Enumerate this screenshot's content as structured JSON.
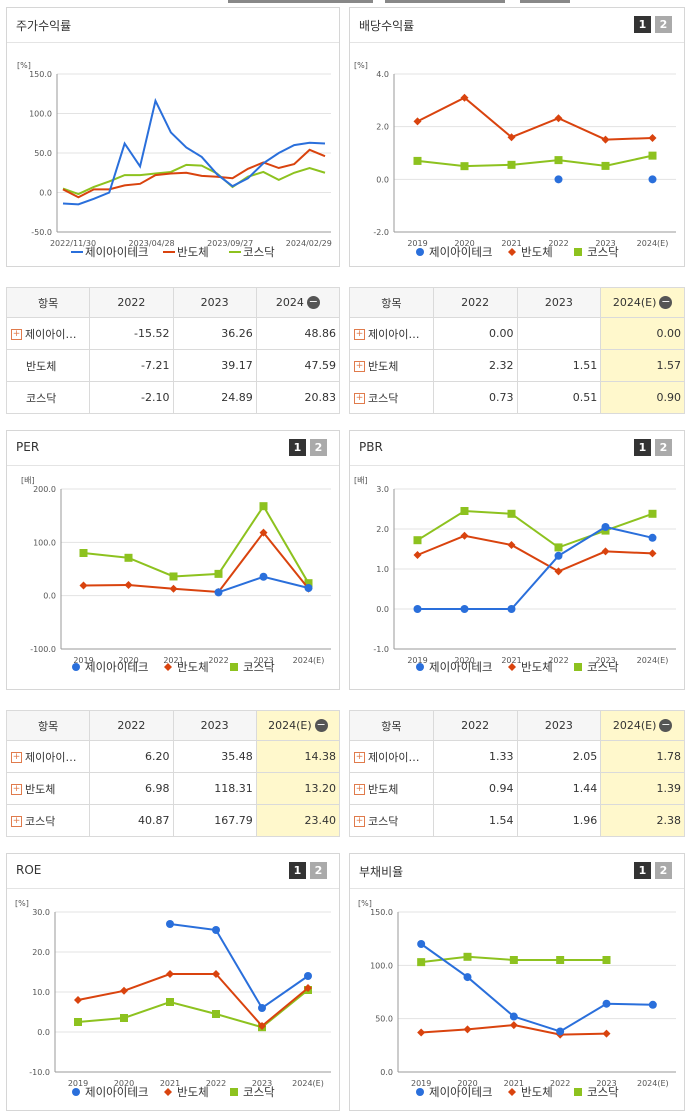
{
  "series_names": [
    "제이아이테크",
    "반도체",
    "코스닥"
  ],
  "colors": {
    "s1": "#2a6fdb",
    "s2": "#d9430e",
    "s3": "#8dc21f"
  },
  "panels": {
    "stock": {
      "title": "주가수익률"
    },
    "dividend": {
      "title": "배당수익률",
      "btn1": "1",
      "btn2": "2"
    },
    "per": {
      "title": "PER",
      "btn1": "1",
      "btn2": "2"
    },
    "pbr": {
      "title": "PBR",
      "btn1": "1",
      "btn2": "2"
    },
    "roe": {
      "title": "ROE",
      "btn1": "1",
      "btn2": "2"
    },
    "debt": {
      "title": "부채비율",
      "btn1": "1",
      "btn2": "2"
    }
  },
  "tables": {
    "stock": {
      "headers": [
        "항목",
        "2022",
        "2023",
        "2024"
      ],
      "rows": [
        {
          "name": "제이아이…",
          "plus": true,
          "v": [
            "-15.52",
            "36.26",
            "48.86"
          ]
        },
        {
          "name": "반도체",
          "plus": false,
          "v": [
            "-7.21",
            "39.17",
            "47.59"
          ]
        },
        {
          "name": "코스닥",
          "plus": false,
          "v": [
            "-2.10",
            "24.89",
            "20.83"
          ]
        }
      ]
    },
    "dividend": {
      "headers": [
        "항목",
        "2022",
        "2023",
        "2024(E)"
      ],
      "rows": [
        {
          "name": "제이아이…",
          "plus": true,
          "v": [
            "0.00",
            "",
            "0.00"
          ]
        },
        {
          "name": "반도체",
          "plus": true,
          "v": [
            "2.32",
            "1.51",
            "1.57"
          ]
        },
        {
          "name": "코스닥",
          "plus": true,
          "v": [
            "0.73",
            "0.51",
            "0.90"
          ]
        }
      ]
    },
    "per": {
      "headers": [
        "항목",
        "2022",
        "2023",
        "2024(E)"
      ],
      "rows": [
        {
          "name": "제이아이…",
          "plus": true,
          "v": [
            "6.20",
            "35.48",
            "14.38"
          ]
        },
        {
          "name": "반도체",
          "plus": true,
          "v": [
            "6.98",
            "118.31",
            "13.20"
          ]
        },
        {
          "name": "코스닥",
          "plus": true,
          "v": [
            "40.87",
            "167.79",
            "23.40"
          ]
        }
      ]
    },
    "pbr": {
      "headers": [
        "항목",
        "2022",
        "2023",
        "2024(E)"
      ],
      "rows": [
        {
          "name": "제이아이…",
          "plus": true,
          "v": [
            "1.33",
            "2.05",
            "1.78"
          ]
        },
        {
          "name": "반도체",
          "plus": true,
          "v": [
            "0.94",
            "1.44",
            "1.39"
          ]
        },
        {
          "name": "코스닥",
          "plus": true,
          "v": [
            "1.54",
            "1.96",
            "2.38"
          ]
        }
      ]
    }
  },
  "chart_data": [
    {
      "id": "stock",
      "type": "line",
      "unit": "[%]",
      "ylim": [
        -50,
        150
      ],
      "yticks": [
        "150.0",
        "100.0",
        "50.0",
        "0.0",
        "-50.0"
      ],
      "xticks": [
        "2022/11/30",
        "2023/04/28",
        "2023/09/27",
        "2024/02/29"
      ],
      "n": 25,
      "series": [
        {
          "name": "제이아이테크",
          "values": [
            -14,
            -15,
            -8,
            0,
            62,
            33,
            116,
            76,
            57,
            45,
            23,
            8,
            18,
            37,
            50,
            60,
            63,
            62
          ]
        },
        {
          "name": "반도체",
          "values": [
            4,
            -6,
            4,
            4,
            9,
            11,
            22,
            24,
            25,
            21,
            20,
            18,
            30,
            38,
            31,
            36,
            54,
            46
          ]
        },
        {
          "name": "코스닥",
          "values": [
            5,
            -2,
            7,
            14,
            22,
            22,
            24,
            26,
            35,
            34,
            24,
            7,
            20,
            26,
            16,
            25,
            31,
            25
          ]
        }
      ],
      "offsets": [
        0,
        0,
        0
      ]
    },
    {
      "id": "dividend",
      "type": "line",
      "unit": "[%]",
      "ylim": [
        -2,
        4
      ],
      "yticks": [
        "4.0",
        "2.0",
        "0.0",
        "-2.0"
      ],
      "categories": [
        "2019",
        "2020",
        "2021",
        "2022",
        "2023",
        "2024(E)"
      ],
      "series": [
        {
          "name": "제이아이테크",
          "values": [
            null,
            null,
            null,
            0.0,
            null,
            0.0
          ]
        },
        {
          "name": "반도체",
          "values": [
            2.2,
            3.1,
            1.6,
            2.32,
            1.51,
            1.57
          ]
        },
        {
          "name": "코스닥",
          "values": [
            0.7,
            0.5,
            0.55,
            0.73,
            0.51,
            0.9
          ]
        }
      ]
    },
    {
      "id": "per",
      "type": "line",
      "unit": "[배]",
      "ylim": [
        -100,
        200
      ],
      "yticks": [
        "200.0",
        "100.0",
        "0.0",
        "-100.0"
      ],
      "categories": [
        "2019",
        "2020",
        "2021",
        "2022",
        "2023",
        "2024(E)"
      ],
      "series": [
        {
          "name": "제이아이테크",
          "values": [
            null,
            null,
            null,
            6.2,
            35.48,
            14.38
          ]
        },
        {
          "name": "반도체",
          "values": [
            19,
            20,
            13,
            6.98,
            118.31,
            13.2
          ]
        },
        {
          "name": "코스닥",
          "values": [
            80,
            71,
            36,
            40.87,
            167.79,
            23.4
          ]
        }
      ]
    },
    {
      "id": "pbr",
      "type": "line",
      "unit": "[배]",
      "ylim": [
        -1,
        3
      ],
      "yticks": [
        "3.0",
        "2.0",
        "1.0",
        "0.0",
        "-1.0"
      ],
      "categories": [
        "2019",
        "2020",
        "2021",
        "2022",
        "2023",
        "2024(E)"
      ],
      "series": [
        {
          "name": "제이아이테크",
          "values": [
            0.0,
            0.0,
            0.0,
            1.33,
            2.05,
            1.78
          ]
        },
        {
          "name": "반도체",
          "values": [
            1.35,
            1.83,
            1.6,
            0.94,
            1.44,
            1.39
          ]
        },
        {
          "name": "코스닥",
          "values": [
            1.72,
            2.45,
            2.38,
            1.54,
            1.96,
            2.38
          ]
        }
      ]
    },
    {
      "id": "roe",
      "type": "line",
      "unit": "[%]",
      "ylim": [
        -10,
        30
      ],
      "yticks": [
        "30.0",
        "20.0",
        "10.0",
        "0.0",
        "-10.0"
      ],
      "categories": [
        "2019",
        "2020",
        "2021",
        "2022",
        "2023",
        "2024(E)"
      ],
      "series": [
        {
          "name": "제이아이테크",
          "values": [
            null,
            null,
            27,
            25.5,
            6,
            14
          ]
        },
        {
          "name": "반도체",
          "values": [
            8,
            10.3,
            14.5,
            14.5,
            1.5,
            11
          ]
        },
        {
          "name": "코스닥",
          "values": [
            2.5,
            3.5,
            7.5,
            4.5,
            1.2,
            10.5
          ]
        }
      ]
    },
    {
      "id": "debt",
      "type": "line",
      "unit": "[%]",
      "ylim": [
        0,
        150
      ],
      "yticks": [
        "150.0",
        "100.0",
        "50.0",
        "0.0"
      ],
      "categories": [
        "2019",
        "2020",
        "2021",
        "2022",
        "2023",
        "2024(E)"
      ],
      "series": [
        {
          "name": "제이아이테크",
          "values": [
            120,
            89,
            52,
            38,
            64,
            63
          ]
        },
        {
          "name": "반도체",
          "values": [
            37,
            40,
            44,
            35,
            36,
            null
          ]
        },
        {
          "name": "코스닥",
          "values": [
            103,
            108,
            105,
            105,
            105,
            null
          ]
        }
      ]
    }
  ]
}
